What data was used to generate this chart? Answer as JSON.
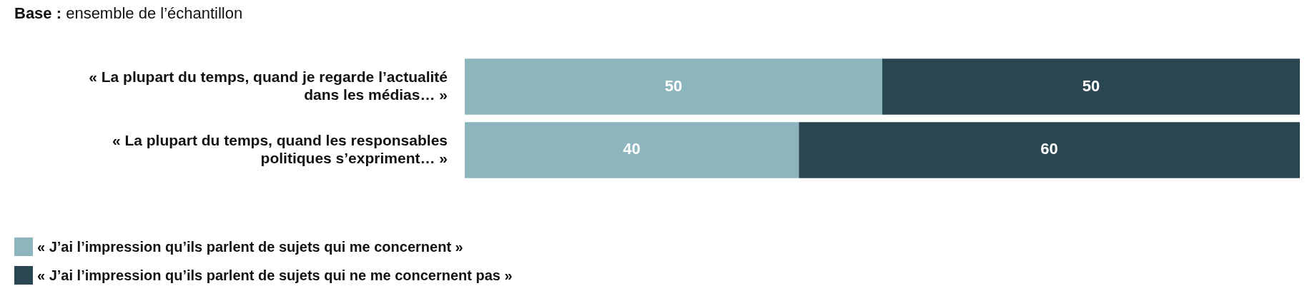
{
  "chart_data": {
    "type": "bar",
    "orientation": "horizontal",
    "stacked": true,
    "title": "Base : ensemble de l’échantillon",
    "categories": [
      "« La plupart du temps, quand je regarde l’actualité dans les médias… »",
      "« La plupart du temps, quand les responsables politiques s’expriment… »"
    ],
    "series": [
      {
        "name": "« J’ai l’impression qu’ils parlent de sujets qui me concernent »",
        "color": "#8db5be",
        "values": [
          50,
          40
        ]
      },
      {
        "name": "« J’ai l’impression qu’ils parlent de sujets qui ne me concernent pas »",
        "color": "#2a4651",
        "values": [
          50,
          60
        ]
      }
    ],
    "xlim": [
      0,
      100
    ],
    "data_labels": true,
    "legend": "bottom",
    "tick_labels": "y"
  }
}
